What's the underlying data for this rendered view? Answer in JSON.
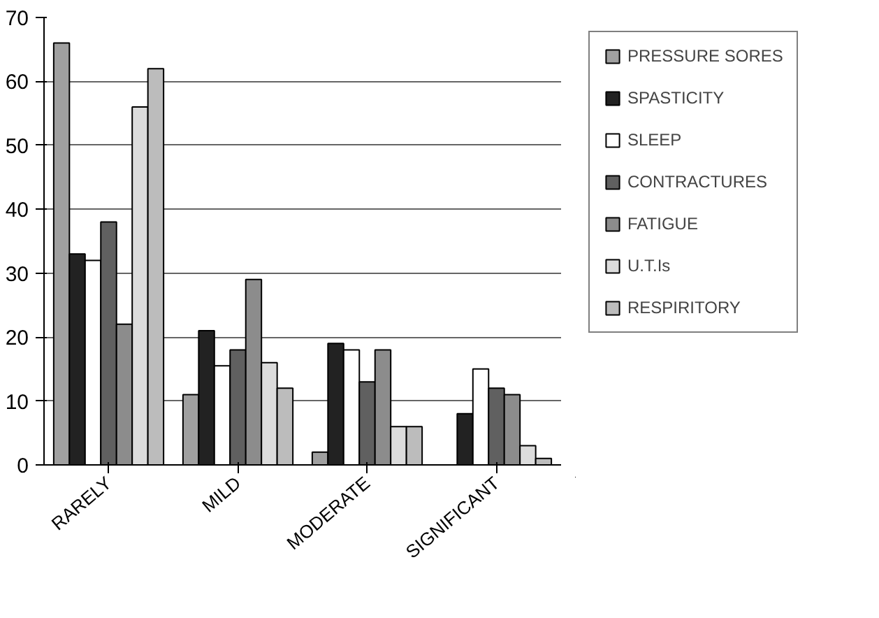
{
  "chart_data": {
    "type": "bar",
    "categories": [
      "RARELY",
      "MILD",
      "MODERATE",
      "SIGNIFICANT"
    ],
    "series": [
      {
        "name": "PRESSURE SORES",
        "color": "#a0a0a0",
        "values": [
          66,
          11,
          2,
          0
        ]
      },
      {
        "name": "SPASTICITY",
        "color": "#222222",
        "values": [
          33,
          21,
          19,
          8
        ]
      },
      {
        "name": "SLEEP",
        "color": "#ffffff",
        "values": [
          32,
          15.5,
          18,
          15
        ]
      },
      {
        "name": "CONTRACTURES",
        "color": "#606060",
        "values": [
          38,
          18,
          13,
          12
        ]
      },
      {
        "name": "FATIGUE",
        "color": "#8c8c8c",
        "values": [
          22,
          29,
          18,
          11
        ]
      },
      {
        "name": "U.T.Is",
        "color": "#dcdcdc",
        "values": [
          56,
          16,
          6,
          3
        ]
      },
      {
        "name": "RESPIRITORY",
        "color": "#bcbcbc",
        "values": [
          62,
          12,
          6,
          1
        ]
      }
    ],
    "ylim": [
      0,
      70
    ],
    "yticks": [
      0,
      10,
      20,
      30,
      40,
      50,
      60,
      70
    ],
    "grid": "y",
    "legend": "right"
  }
}
